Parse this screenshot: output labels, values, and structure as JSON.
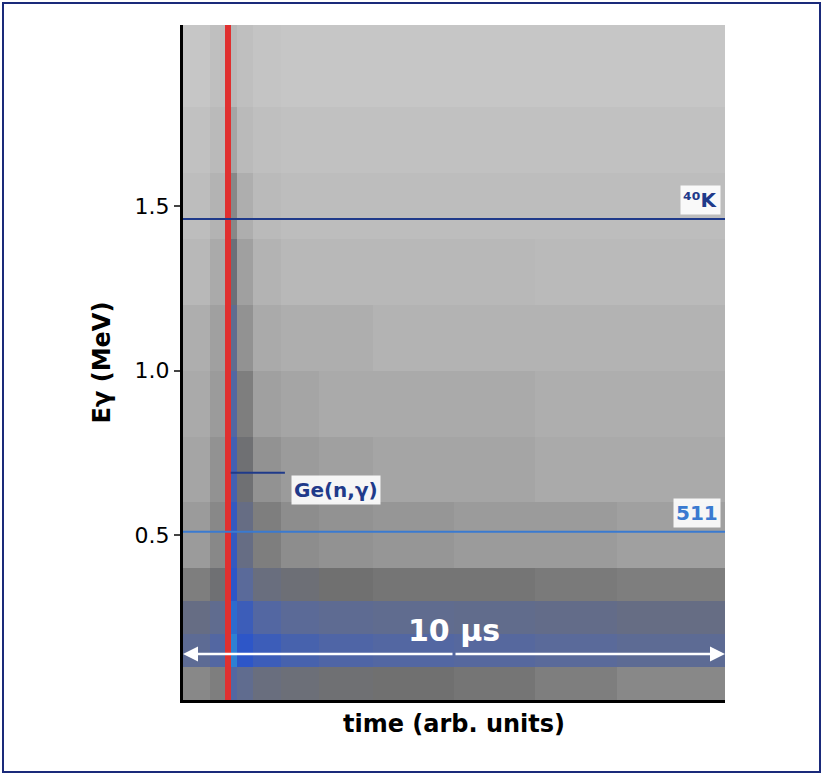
{
  "chart_data": {
    "type": "heatmap",
    "x_label": "time (arb. units)",
    "y_label": "Eγ (MeV)",
    "xlim": [
      0,
      10
    ],
    "ylim": [
      0,
      2.05
    ],
    "yticks": [
      0.5,
      {
        "value": 1,
        "label": "1.0"
      },
      1.5
    ],
    "tick_labels": "y",
    "grid": false,
    "time_bins": [
      0,
      0.5,
      0.78,
      0.88,
      1.0,
      1.3,
      1.8,
      2.5,
      3.5,
      5,
      6.5,
      8,
      10
    ],
    "energy_bins": [
      0,
      0.1,
      0.2,
      0.3,
      0.4,
      0.6,
      0.8,
      1.0,
      1.2,
      1.4,
      1.6,
      1.8,
      2.05
    ],
    "counts": [
      [
        40,
        42,
        100,
        62,
        56,
        50,
        48,
        46,
        45,
        44,
        42,
        40
      ],
      [
        58,
        62,
        100,
        78,
        72,
        68,
        65,
        63,
        62,
        61,
        60,
        58
      ],
      [
        52,
        56,
        100,
        75,
        68,
        62,
        59,
        57,
        56,
        55,
        54,
        52
      ],
      [
        42,
        46,
        100,
        72,
        60,
        50,
        47,
        45,
        44,
        44,
        43,
        42
      ],
      [
        36,
        40,
        100,
        70,
        52,
        42,
        39,
        38,
        37,
        36,
        36,
        35
      ],
      [
        34,
        38,
        100,
        66,
        46,
        38,
        36,
        35,
        34,
        34,
        33,
        33
      ],
      [
        33,
        36,
        100,
        62,
        42,
        35,
        34,
        33,
        33,
        33,
        32,
        32
      ],
      [
        32,
        35,
        100,
        56,
        38,
        33,
        32,
        32,
        31,
        31,
        31,
        31
      ],
      [
        30,
        33,
        100,
        48,
        35,
        31,
        30,
        30,
        30,
        30,
        29,
        29
      ],
      [
        28,
        31,
        100,
        40,
        32,
        29,
        28,
        28,
        28,
        28,
        28,
        28
      ],
      [
        26,
        29,
        100,
        34,
        29,
        27,
        26,
        26,
        26,
        26,
        26,
        26
      ],
      [
        24,
        27,
        100,
        30,
        27,
        25,
        24,
        24,
        24,
        24,
        24,
        24
      ]
    ],
    "zlim": [
      0,
      100
    ],
    "series": [
      {
        "name": "⁴⁰K",
        "type": "line",
        "color": "#1f3a8a",
        "x": [
          0,
          10
        ],
        "values": [
          1.461,
          1.461
        ]
      },
      {
        "name": "511",
        "type": "line",
        "color": "#3a7ad0",
        "x": [
          0,
          10
        ],
        "values": [
          0.511,
          0.511
        ]
      },
      {
        "name": "Ge(n,γ)",
        "type": "line",
        "color": "#1f3a8a",
        "x": [
          0.88,
          1.88
        ],
        "values": [
          0.69,
          0.69
        ]
      }
    ],
    "annotations": [
      {
        "text": "10 μs",
        "x": [
          0,
          10
        ],
        "y": 0.14
      }
    ]
  }
}
